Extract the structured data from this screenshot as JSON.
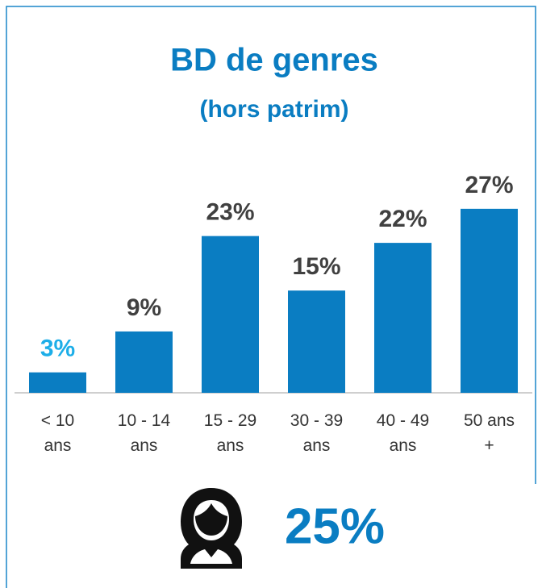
{
  "chart_data": {
    "type": "bar",
    "title": "BD de genres",
    "subtitle": "(hors patrim)",
    "categories": [
      "< 10 ans",
      "10 - 14 ans",
      "15 - 29 ans",
      "30 - 39 ans",
      "40 - 49 ans",
      "50 ans +"
    ],
    "values": [
      3,
      9,
      23,
      15,
      22,
      27
    ],
    "value_labels": [
      "3%",
      "9%",
      "23%",
      "15%",
      "22%",
      "27%"
    ],
    "value_label_colors": [
      "#1daee8",
      "#404040",
      "#404040",
      "#404040",
      "#404040",
      "#404040"
    ],
    "color": "#0a7dc2",
    "ylim": [
      0,
      30
    ],
    "annotation": "25%"
  }
}
